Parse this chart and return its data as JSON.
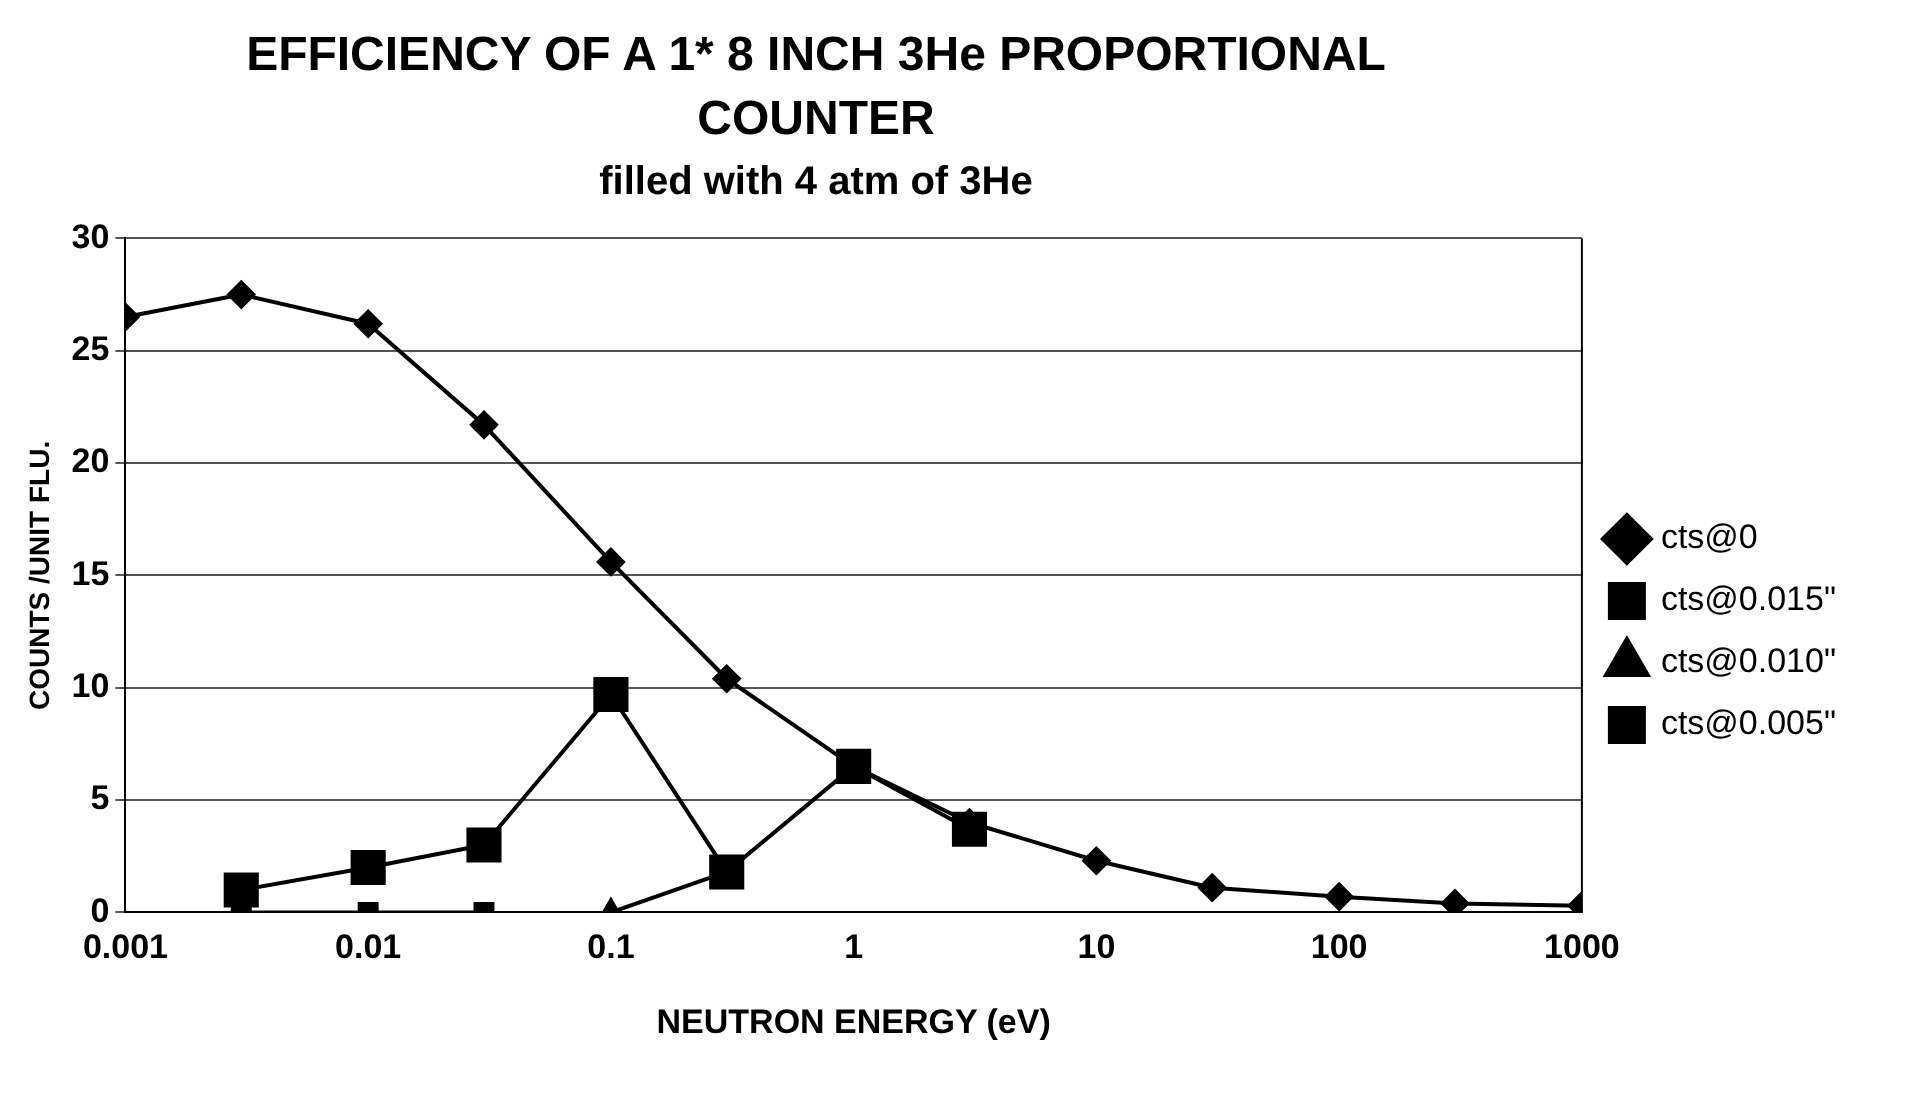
{
  "chart_data": {
    "type": "line",
    "title": "EFFICIENCY OF A 1* 8 INCH 3He PROPORTIONAL COUNTER",
    "subtitle": "filled with 4 atm of 3He",
    "xlabel": "NEUTRON ENERGY (eV)",
    "ylabel": "COUNTS /UNIT FLU.",
    "log": "x",
    "xlim": [
      0.001,
      1000
    ],
    "xticks": [
      0.001,
      0.01,
      0.1,
      1,
      10,
      100,
      1000
    ],
    "ylim": [
      0,
      30
    ],
    "yticks": [
      0,
      5,
      10,
      15,
      20,
      25,
      30
    ],
    "grid": "y",
    "legend": "right",
    "line_style": "solid",
    "series": [
      {
        "name": "cts@0",
        "color": "#000000",
        "marker": "diamond",
        "x": [
          0.001,
          0.003,
          0.01,
          0.03,
          0.1,
          0.3,
          1,
          3,
          10,
          30,
          100,
          300,
          1000
        ],
        "values": [
          26.5,
          27.5,
          26.2,
          21.7,
          15.6,
          10.4,
          6.5,
          4,
          2.3,
          1.1,
          0.7,
          0.4,
          0.3
        ]
      },
      {
        "name": "cts@0.015\"",
        "color": "#000000",
        "marker": "square",
        "x": [
          0.003,
          0.01,
          0.03
        ],
        "values": [
          0,
          0,
          0
        ]
      },
      {
        "name": "cts@0.010\"",
        "color": "#000000",
        "marker": "triangle",
        "x": [
          0.1,
          0.3
        ],
        "values": [
          0,
          1.8
        ]
      },
      {
        "name": "cts@0.005\"",
        "color": "#000000",
        "marker": "square",
        "x": [
          0.003,
          0.01,
          0.03,
          0.1,
          0.3,
          1,
          3
        ],
        "values": [
          1,
          2,
          3,
          9.7,
          1.8,
          6.5,
          3.7
        ]
      }
    ]
  }
}
